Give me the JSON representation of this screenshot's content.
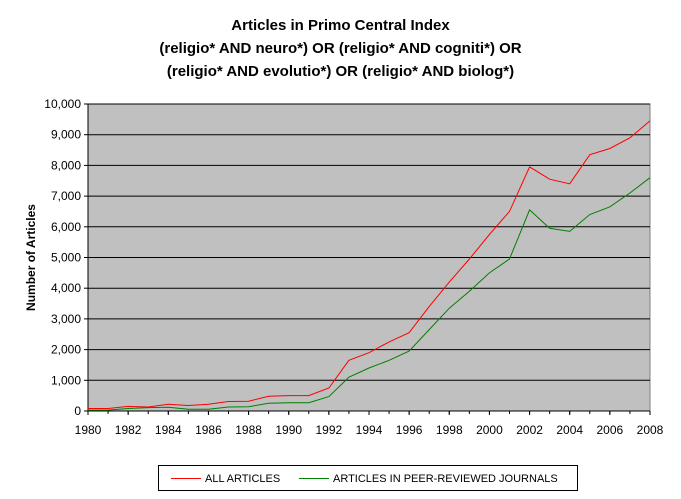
{
  "chart_data": {
    "type": "line",
    "title": "Articles in Primo Central Index",
    "subtitle": [
      "(religio* AND neuro*) OR (religio* AND cogniti*) OR",
      "(religio* AND evolutio*) OR (religio* AND biolog*)"
    ],
    "xlabel": "",
    "ylabel": "Number of Articles",
    "xlim": [
      1980,
      2008
    ],
    "ylim": [
      0,
      10000
    ],
    "x_ticks": [
      1980,
      1982,
      1984,
      1986,
      1988,
      1990,
      1992,
      1994,
      1996,
      1998,
      2000,
      2002,
      2004,
      2006,
      2008
    ],
    "x_tick_labels": [
      "1980",
      "1982",
      "1984",
      "1986",
      "1988",
      "1990",
      "1992",
      "1994",
      "1996",
      "1998",
      "2000",
      "2002",
      "2004",
      "2006",
      "2008"
    ],
    "y_ticks": [
      0,
      1000,
      2000,
      3000,
      4000,
      5000,
      6000,
      7000,
      8000,
      9000,
      10000
    ],
    "y_tick_labels": [
      "0",
      "1,000",
      "2,000",
      "3,000",
      "4,000",
      "5,000",
      "6,000",
      "7,000",
      "8,000",
      "9,000",
      "10,000"
    ],
    "grid": true,
    "legend_position": "bottom",
    "plot_background": "#c0c0c0",
    "x": [
      1980,
      1981,
      1982,
      1983,
      1984,
      1985,
      1986,
      1987,
      1988,
      1989,
      1990,
      1991,
      1992,
      1993,
      1994,
      1995,
      1996,
      1997,
      1998,
      1999,
      2000,
      2001,
      2002,
      2003,
      2004,
      2005,
      2006,
      2007,
      2008
    ],
    "series": [
      {
        "name": "ALL ARTICLES",
        "color": "#ff0000",
        "values": [
          80,
          80,
          150,
          130,
          220,
          180,
          220,
          310,
          320,
          480,
          500,
          500,
          750,
          1650,
          1900,
          2250,
          2550,
          3400,
          4200,
          4950,
          5750,
          6500,
          7950,
          7550,
          7400,
          8350,
          8550,
          8900,
          9450
        ]
      },
      {
        "name": "ARTICLES IN PEER-REVIEWED JOURNALS",
        "color": "#008000",
        "values": [
          30,
          30,
          80,
          110,
          120,
          60,
          60,
          130,
          140,
          250,
          270,
          270,
          470,
          1100,
          1400,
          1650,
          1950,
          2650,
          3350,
          3900,
          4500,
          4950,
          6550,
          5950,
          5850,
          6400,
          6650,
          7100,
          7600
        ]
      }
    ]
  }
}
